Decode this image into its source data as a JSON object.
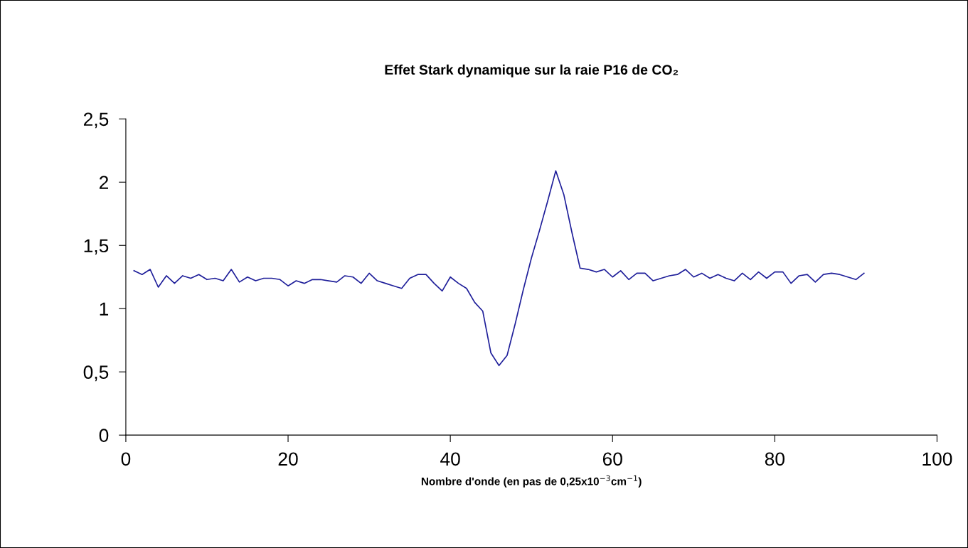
{
  "chart_data": {
    "type": "line",
    "title": "Effet Stark dynamique sur la raie P16 de CO₂",
    "xlabel": "Nombre d'onde (en pas de 0,25x10$^{−3}$cm$^{−1}$)",
    "x": [
      1,
      2,
      3,
      4,
      5,
      6,
      7,
      8,
      9,
      10,
      11,
      12,
      13,
      14,
      15,
      16,
      17,
      18,
      19,
      20,
      21,
      22,
      23,
      24,
      25,
      26,
      27,
      28,
      29,
      30,
      31,
      32,
      33,
      34,
      35,
      36,
      37,
      38,
      39,
      40,
      41,
      42,
      43,
      44,
      45,
      46,
      47,
      48,
      49,
      50,
      51,
      52,
      53,
      54,
      55,
      56,
      57,
      58,
      59,
      60,
      61,
      62,
      63,
      64,
      65,
      66,
      67,
      68,
      69,
      70,
      71,
      72,
      73,
      74,
      75,
      76,
      77,
      78,
      79,
      80,
      81,
      82,
      83,
      84,
      85,
      86,
      87,
      88,
      89,
      90,
      91
    ],
    "series": [
      {
        "color": "#1f1f9a",
        "values": [
          1.3,
          1.27,
          1.31,
          1.17,
          1.26,
          1.2,
          1.26,
          1.24,
          1.27,
          1.23,
          1.24,
          1.22,
          1.31,
          1.21,
          1.25,
          1.22,
          1.24,
          1.24,
          1.23,
          1.18,
          1.22,
          1.2,
          1.23,
          1.23,
          1.22,
          1.21,
          1.26,
          1.25,
          1.2,
          1.28,
          1.22,
          1.2,
          1.18,
          1.16,
          1.24,
          1.27,
          1.27,
          1.2,
          1.14,
          1.25,
          1.2,
          1.16,
          1.05,
          0.98,
          0.65,
          0.55,
          0.63,
          0.88,
          1.15,
          1.4,
          1.62,
          1.85,
          2.09,
          1.9,
          1.6,
          1.32,
          1.31,
          1.29,
          1.31,
          1.25,
          1.3,
          1.23,
          1.28,
          1.28,
          1.22,
          1.24,
          1.26,
          1.27,
          1.31,
          1.25,
          1.28,
          1.24,
          1.27,
          1.24,
          1.22,
          1.28,
          1.23,
          1.29,
          1.24,
          1.29,
          1.29,
          1.2,
          1.26,
          1.27,
          1.21,
          1.27,
          1.28,
          1.27,
          1.25,
          1.23,
          1.28
        ]
      }
    ],
    "xlim": [
      0,
      100
    ],
    "xticks": [
      0,
      20,
      40,
      60,
      80,
      100
    ],
    "ylim": [
      0,
      2.5
    ],
    "yticks": [
      0,
      {
        "value": 0.5,
        "label": "0,5"
      },
      1,
      {
        "value": 1.5,
        "label": "1,5"
      },
      2,
      {
        "value": 2.5,
        "label": "2,5"
      }
    ],
    "grid": false,
    "legend": false,
    "marker": "none",
    "line_style": "solid"
  }
}
